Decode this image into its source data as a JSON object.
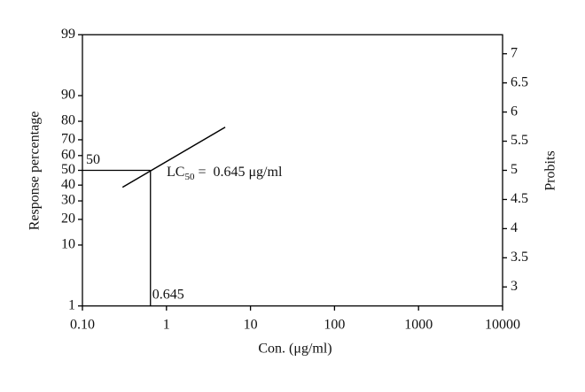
{
  "chart_data": {
    "type": "line",
    "xlabel": "Con. (μg/ml)",
    "ylabel": "Response percentage",
    "y2label": "Probits",
    "xscale": "log",
    "yscale": "probit",
    "xlim": [
      0.1,
      10000
    ],
    "xticks": [
      {
        "value": 0.1,
        "label": "0.10"
      },
      1,
      10,
      100,
      1000,
      10000
    ],
    "ylim": [
      1,
      99
    ],
    "yticks": [
      1,
      10,
      20,
      30,
      40,
      50,
      60,
      70,
      80,
      90,
      99
    ],
    "y2lim": [
      2.67,
      7.33
    ],
    "y2ticks": [
      3,
      3.5,
      4,
      4.5,
      5,
      5.5,
      6,
      6.5,
      7
    ],
    "series": [
      {
        "x": [
          0.3,
          5
        ],
        "values": [
          4.71,
          5.74
        ],
        "axis": "y2",
        "color": "#000000"
      }
    ],
    "reference": {
      "x": 0.645,
      "y": 50
    },
    "annotation": {
      "text": "LC",
      "sub": "50",
      "rest": " =  0.645 μg/ml"
    }
  }
}
